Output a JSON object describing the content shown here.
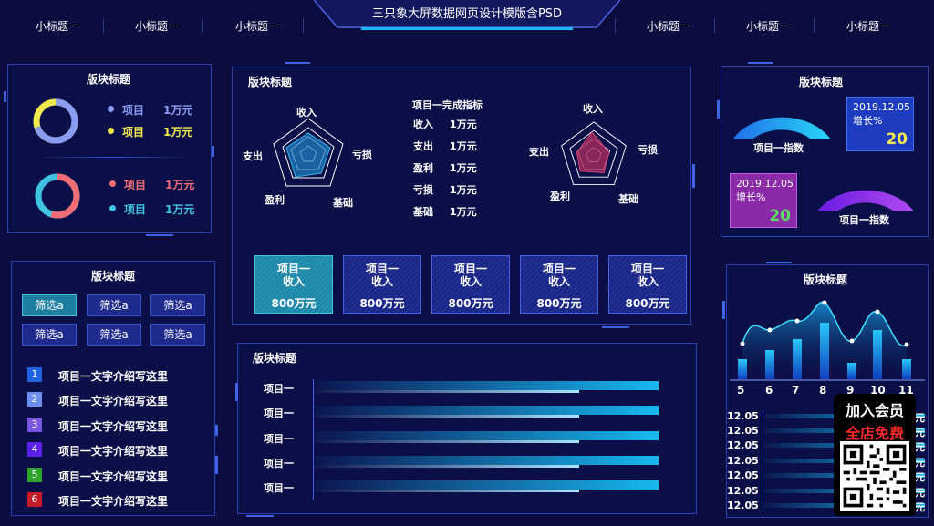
{
  "header": {
    "title": "三只象大屏数据网页设计模版含PSD",
    "nav_left": [
      "小标题一",
      "小标题一",
      "小标题一"
    ],
    "nav_right": [
      "小标题一",
      "小标题一",
      "小标题一"
    ]
  },
  "panel_donuts": {
    "title": "版块标题",
    "donut1": {
      "legend": [
        {
          "label": "项目",
          "value": "1万元",
          "color": "#8a9cf2"
        },
        {
          "label": "项目",
          "value": "1万元",
          "color": "#f2e94e"
        }
      ],
      "fraction": 0.7
    },
    "donut2": {
      "legend": [
        {
          "label": "项目",
          "value": "1万元",
          "color": "#f06d76"
        },
        {
          "label": "项目",
          "value": "1万元",
          "color": "#3fc3e0"
        }
      ],
      "fraction": 0.55
    }
  },
  "panel_filter": {
    "title": "版块标题",
    "buttons": [
      "筛选a",
      "筛选a",
      "筛选a",
      "筛选a",
      "筛选a",
      "筛选a"
    ],
    "list": [
      {
        "num": "1",
        "text": "项目一文字介绍写这里",
        "color": "#1f63e0"
      },
      {
        "num": "2",
        "text": "项目一文字介绍写这里",
        "color": "#6d8ff0"
      },
      {
        "num": "3",
        "text": "项目一文字介绍写这里",
        "color": "#7a55e0"
      },
      {
        "num": "4",
        "text": "项目一文字介绍写这里",
        "color": "#5a20e8"
      },
      {
        "num": "5",
        "text": "项目一文字介绍写这里",
        "color": "#2aa52a"
      },
      {
        "num": "6",
        "text": "项目一文字介绍写这里",
        "color": "#c41a2a"
      }
    ]
  },
  "panel_center": {
    "title": "版块标题",
    "radar_labels": [
      "收入",
      "亏损",
      "基础",
      "盈利",
      "支出"
    ],
    "indicators_title": "项目一完成指标",
    "indicators": [
      {
        "label": "收入",
        "value": "1万元"
      },
      {
        "label": "支出",
        "value": "1万元"
      },
      {
        "label": "盈利",
        "value": "1万元"
      },
      {
        "label": "亏损",
        "value": "1万元"
      },
      {
        "label": "基础",
        "value": "1万元"
      }
    ],
    "stat_cards": [
      {
        "line1": "项目一",
        "line2": "收入",
        "value": "800万元"
      },
      {
        "line1": "项目一",
        "line2": "收入",
        "value": "800万元"
      },
      {
        "line1": "项目一",
        "line2": "收入",
        "value": "800万元"
      },
      {
        "line1": "项目一",
        "line2": "收入",
        "value": "800万元"
      },
      {
        "line1": "项目一",
        "line2": "收入",
        "value": "800万元"
      }
    ]
  },
  "panel_hbars": {
    "title": "版块标题",
    "labels": [
      "项目一",
      "项目一",
      "项目一",
      "项目一",
      "项目一"
    ]
  },
  "panel_gauges": {
    "title": "版块标题",
    "gauge1_label": "项目一指数",
    "gauge2_label": "项目一指数",
    "badge1": {
      "date": "2019.12.05",
      "label": "增长%",
      "value": "20"
    },
    "badge2": {
      "date": "2019.12.05",
      "label": "增长%",
      "value": "20"
    }
  },
  "panel_area": {
    "title": "版块标题",
    "x_labels": [
      "5",
      "6",
      "7",
      "8",
      "9",
      "10",
      "11"
    ],
    "row_labels": [
      "12.05",
      "12.05",
      "12.05",
      "12.05",
      "12.05",
      "12.05",
      "12.05"
    ],
    "row_suffix": "元"
  },
  "promo": {
    "line1": "加入会员",
    "line2": "全店免费"
  },
  "colors": {
    "accent": "#3e63e6",
    "bg": "#0b0d3e",
    "cyan": "#18b8f0"
  }
}
